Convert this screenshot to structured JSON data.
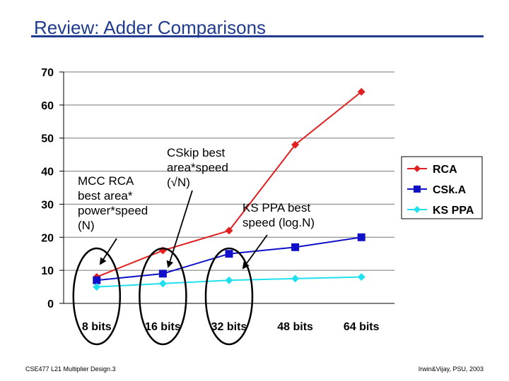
{
  "slide": {
    "title": "Review:  Adder Comparisons",
    "footer_left": "CSE477  L21 Multiplier Design.3",
    "footer_right": "Irwin&Vijay, PSU, 2003"
  },
  "annotations": [
    {
      "text": "MCC RCA\nbest area*\npower*speed\n(N)"
    },
    {
      "text": "CSkip best\narea*speed\n(√N)"
    },
    {
      "text": "KS PPA best\nspeed (log.N)"
    }
  ],
  "chart_data": {
    "type": "line",
    "categories": [
      "8 bits",
      "16 bits",
      "32 bits",
      "48 bits",
      "64 bits"
    ],
    "yticks": [
      "0",
      "10",
      "20",
      "30",
      "40",
      "50",
      "60",
      "70"
    ],
    "ylim": [
      0,
      70
    ],
    "grid": true,
    "legend_position": "right",
    "series": [
      {
        "name": "RCA",
        "color": "#e02020",
        "marker": "diamond",
        "values": [
          8,
          16,
          22,
          48,
          64
        ]
      },
      {
        "name": "CSk.A",
        "color": "#1010c8",
        "marker": "square",
        "values": [
          7,
          9,
          15,
          17,
          20
        ]
      },
      {
        "name": "KS PPA",
        "color": "#20e0f0",
        "marker": "diamond",
        "values": [
          5,
          6,
          7,
          7.5,
          8
        ]
      }
    ]
  }
}
